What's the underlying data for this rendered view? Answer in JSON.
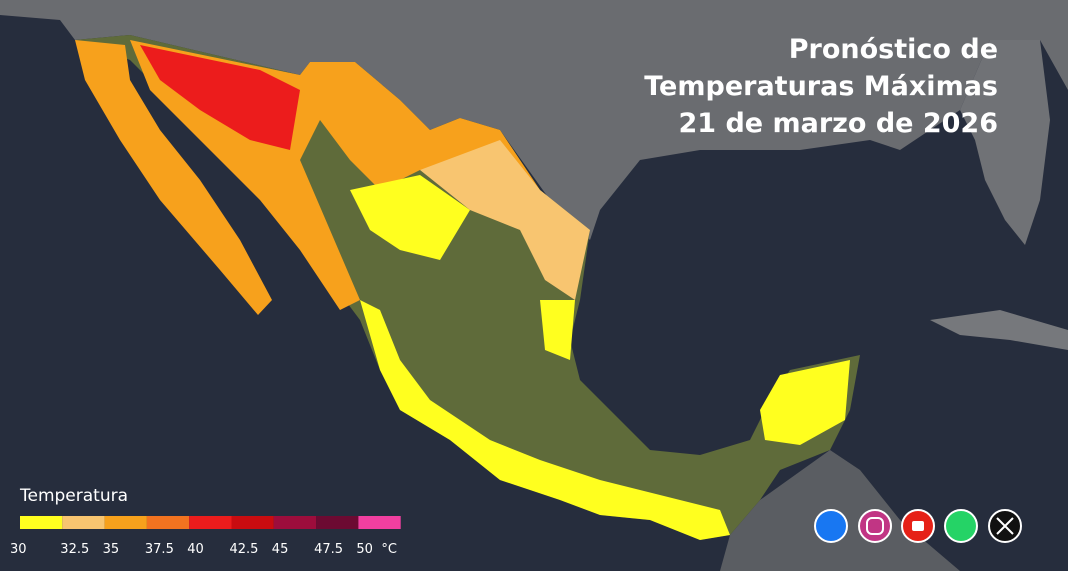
{
  "header": {
    "title_lines": [
      "Pronóstico de",
      "Temperaturas Máximas",
      "21 de marzo de 2026"
    ]
  },
  "legend": {
    "title": "Temperatura",
    "unit": "°C",
    "items": [
      {
        "label": "30",
        "color": "#ffff1f"
      },
      {
        "label": "32.5",
        "color": "#f8c570"
      },
      {
        "label": "35",
        "color": "#f7a11c"
      },
      {
        "label": "37.5",
        "color": "#f27320"
      },
      {
        "label": "40",
        "color": "#ec1c1c"
      },
      {
        "label": "42.5",
        "color": "#c90c10"
      },
      {
        "label": "45",
        "color": "#9d0d3c"
      },
      {
        "label": "47.5",
        "color": "#6c0a32"
      },
      {
        "label": "50",
        "color": "#f13fa0"
      }
    ]
  }
}
